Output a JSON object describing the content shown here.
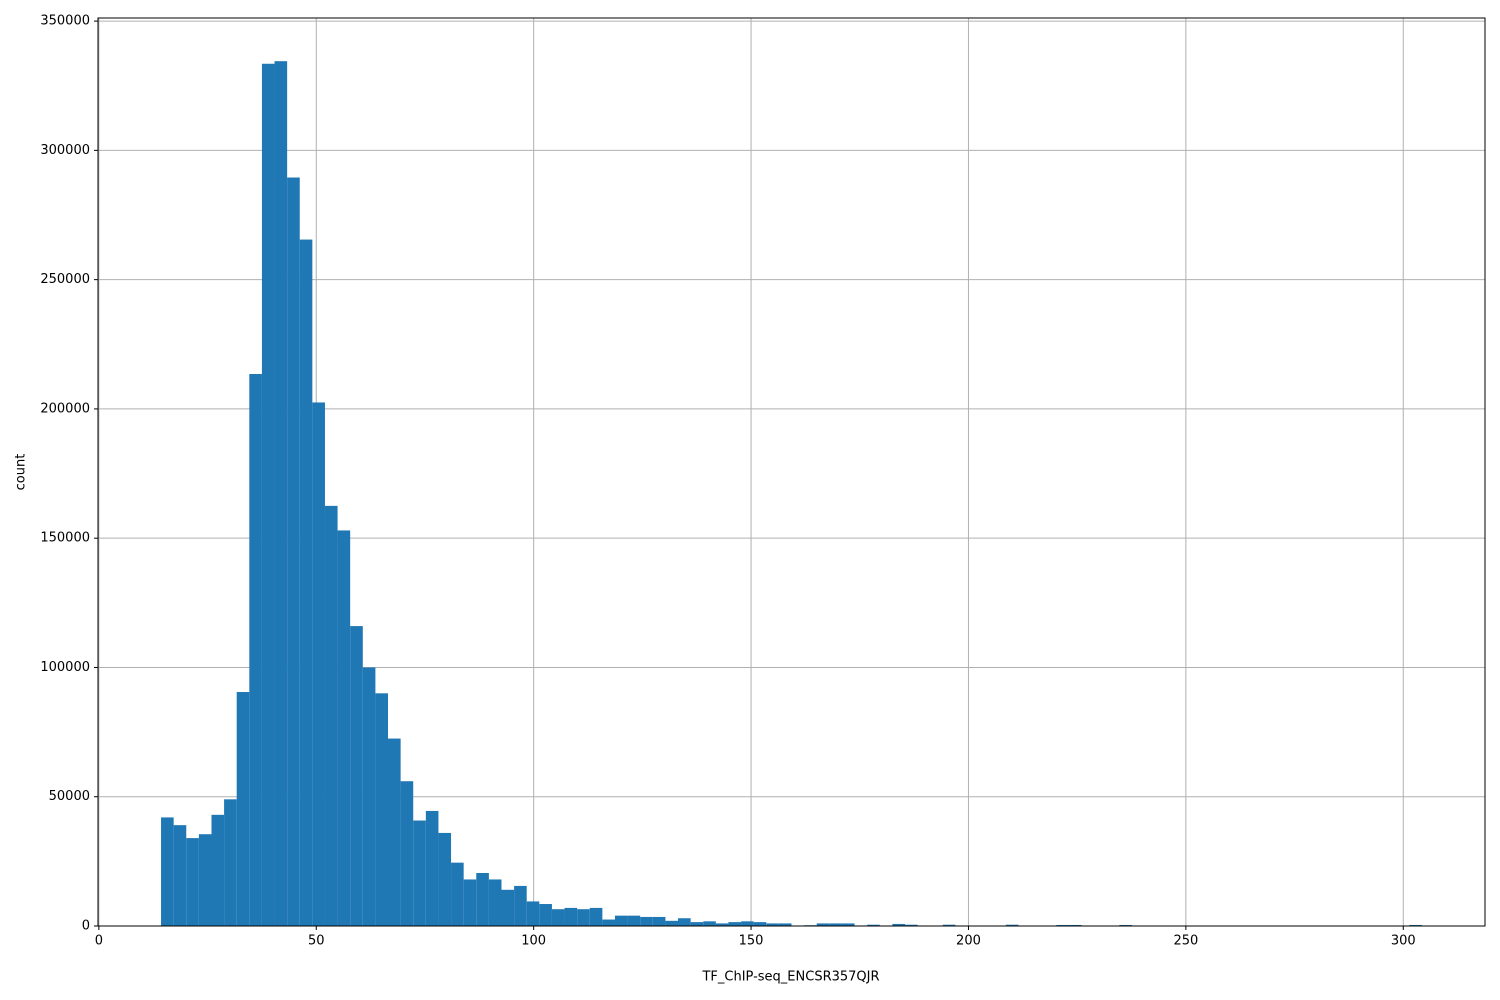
{
  "chart_data": {
    "type": "histogram",
    "x_label": "TF_ChIP-seq_ENCSR357QJR",
    "y_label": "count",
    "color": "#1f77b4",
    "grid": true,
    "bins": [
      14.3,
      17.2,
      20.1,
      23,
      25.9,
      28.8,
      31.7,
      34.6,
      37.5,
      40.4,
      43.3,
      46.2,
      49.1,
      52,
      54.9,
      57.8,
      60.7,
      63.6,
      66.5,
      69.4,
      72.3,
      75.2,
      78.1,
      81,
      83.9,
      86.8,
      89.7,
      92.6,
      95.5,
      98.4,
      101.3,
      104.2,
      107.1,
      110,
      112.9,
      115.8,
      118.7,
      121.6,
      124.5,
      127.4,
      130.3,
      133.2,
      136.1,
      139,
      141.9,
      144.8,
      147.7,
      150.6,
      153.5,
      156.4,
      159.3,
      162.2,
      165.1,
      168,
      170.9,
      173.8,
      176.7,
      179.6,
      182.5,
      185.4,
      188.3,
      191.2,
      194.1,
      197,
      199.9,
      202.8,
      205.7,
      208.6,
      211.5,
      214.4,
      217.3,
      220.2,
      223.1,
      226,
      228.9,
      231.8,
      234.7,
      237.6,
      240.5,
      243.4,
      246.3,
      249.2,
      252.1,
      255,
      257.9,
      260.8,
      263.7,
      266.6,
      269.5,
      272.4,
      275.3,
      278.2,
      281.1,
      284,
      286.9,
      289.8,
      292.7,
      295.6,
      298.5,
      301.4,
      304.3
    ],
    "counts": [
      42000,
      39000,
      34000,
      35500,
      43000,
      49000,
      90500,
      213500,
      333500,
      334500,
      289500,
      265500,
      202500,
      162500,
      153000,
      116000,
      100000,
      90000,
      72500,
      56000,
      40800,
      44500,
      36000,
      24500,
      18000,
      20500,
      18000,
      14000,
      15500,
      9500,
      8500,
      6500,
      7000,
      6500,
      7000,
      2500,
      4000,
      4000,
      3500,
      3500,
      2000,
      3000,
      1500,
      1800,
      1000,
      1500,
      1800,
      1500,
      1000,
      1000,
      0,
      300,
      1000,
      1000,
      1000,
      200,
      500,
      200,
      800,
      500,
      200,
      100,
      500,
      100,
      100,
      100,
      100,
      500,
      0,
      0,
      100,
      400,
      400,
      0,
      0,
      0,
      400,
      0,
      0,
      0,
      0,
      0,
      0,
      0,
      0,
      0,
      0,
      0,
      0,
      0,
      0,
      0,
      0,
      0,
      0,
      0,
      0,
      0,
      0,
      400
    ],
    "xlim": [
      -0.2,
      318.8
    ],
    "ylim": [
      0,
      351200
    ],
    "xticks": [
      0,
      50,
      100,
      150,
      200,
      250,
      300
    ],
    "yticks": [
      0,
      50000,
      100000,
      150000,
      200000,
      250000,
      300000,
      350000
    ]
  }
}
